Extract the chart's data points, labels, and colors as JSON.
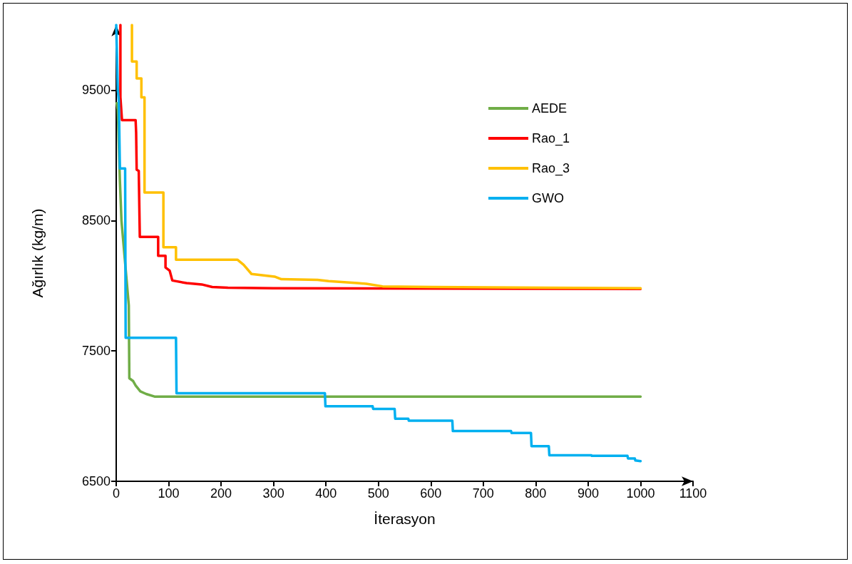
{
  "chart_data": {
    "type": "line",
    "xlabel": "İterasyon",
    "ylabel": "Ağırlık (kg/m)",
    "xlim": [
      0,
      1100
    ],
    "xticks": [
      0,
      100,
      200,
      300,
      400,
      500,
      600,
      700,
      800,
      900,
      1000,
      1100
    ],
    "ylim": [
      6500,
      10000
    ],
    "yticks": [
      6500,
      7500,
      8500,
      9500
    ],
    "grid": false,
    "legend": "top right",
    "marker": "none",
    "line_style": "solid",
    "series": [
      {
        "name": "AEDE",
        "color": "#70ad47",
        "x": [
          1,
          3,
          7,
          10,
          24,
          25,
          32,
          37,
          46,
          57,
          73,
          1000
        ],
        "values": [
          9400,
          9350,
          8810,
          8500,
          7850,
          7290,
          7270,
          7235,
          7190,
          7170,
          7150,
          7150
        ]
      },
      {
        "name": "Rao_1",
        "color": "#ff0000",
        "x": [
          8,
          8,
          11,
          37,
          38,
          39,
          43,
          45,
          80,
          80,
          94,
          94,
          102,
          107,
          134,
          163,
          183,
          213,
          300,
          1000
        ],
        "values": [
          10000,
          9445,
          9270,
          9270,
          9175,
          8890,
          8880,
          8375,
          8375,
          8230,
          8230,
          8140,
          8115,
          8040,
          8020,
          8010,
          7990,
          7985,
          7980,
          7975
        ]
      },
      {
        "name": "Rao_3",
        "color": "#ffc000",
        "x": [
          30,
          30,
          39,
          39,
          48,
          48,
          54,
          54,
          90,
          90,
          114,
          114,
          231,
          243,
          258,
          302,
          315,
          384,
          405,
          460,
          477,
          508,
          602,
          1000
        ],
        "values": [
          10000,
          9720,
          9720,
          9590,
          9590,
          9445,
          9445,
          8715,
          8715,
          8295,
          8295,
          8200,
          8200,
          8160,
          8090,
          8070,
          8050,
          8045,
          8035,
          8020,
          8015,
          7995,
          7990,
          7980
        ]
      },
      {
        "name": "GWO",
        "color": "#00b0f0",
        "x": [
          0,
          3,
          5,
          7,
          17,
          18,
          114,
          115,
          398,
          399,
          489,
          490,
          531,
          532,
          557,
          558,
          641,
          642,
          753,
          754,
          791,
          792,
          825,
          826,
          906,
          907,
          975,
          976,
          989,
          990,
          1000
        ],
        "values": [
          10000,
          9500,
          9420,
          8900,
          8900,
          7600,
          7600,
          7175,
          7175,
          7075,
          7075,
          7055,
          7055,
          6980,
          6980,
          6965,
          6965,
          6885,
          6885,
          6870,
          6870,
          6770,
          6770,
          6700,
          6700,
          6695,
          6695,
          6675,
          6675,
          6660,
          6655
        ]
      }
    ]
  }
}
